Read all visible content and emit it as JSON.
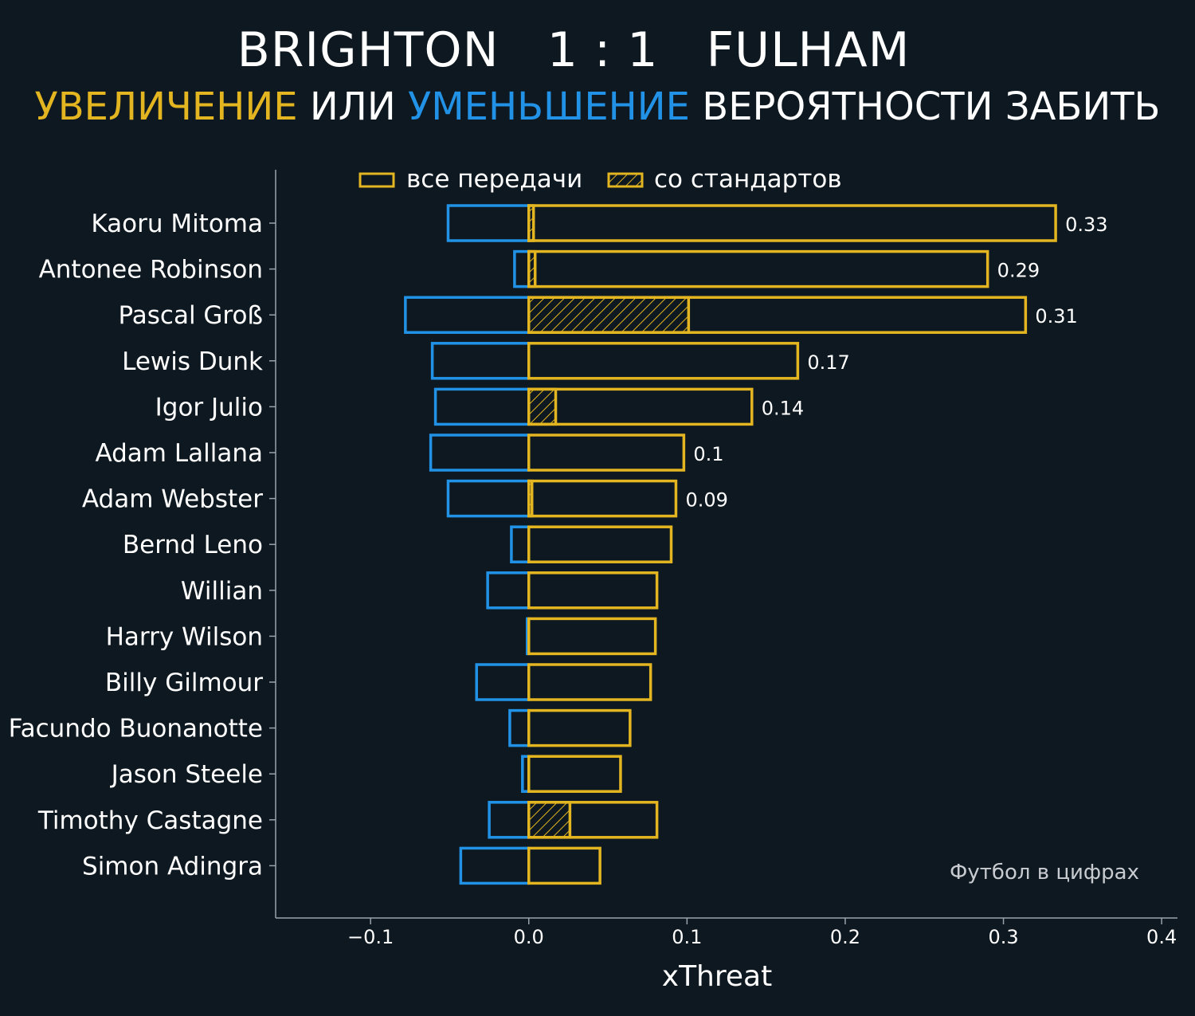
{
  "header": {
    "home_team": "BRIGHTON",
    "score": "1 : 1",
    "away_team": "FULHAM",
    "subtitle_increase": "УВЕЛИЧЕНИЕ",
    "subtitle_or": " ИЛИ ",
    "subtitle_decrease": "УМЕНЬШЕНИЕ",
    "subtitle_rest": " ВЕРОЯТНОСТИ ЗАБИТЬ"
  },
  "credit": "Футбол в цифрах",
  "colors": {
    "background": "#0e1820",
    "increase": "#e3b520",
    "decrease": "#2292e6",
    "axis": "#9aa3aa",
    "text": "#ffffff"
  },
  "chart_data": {
    "type": "bar",
    "orientation": "horizontal",
    "xlabel": "xThreat",
    "ylabel": "",
    "xlim": [
      -0.16,
      0.41
    ],
    "xticks": [
      -0.1,
      0.0,
      0.1,
      0.2,
      0.3,
      0.4
    ],
    "xtick_labels": [
      "−0.1",
      "0.0",
      "0.1",
      "0.2",
      "0.3",
      "0.4"
    ],
    "legend": {
      "placement": "top",
      "entries": [
        "все передачи",
        "со стандартов"
      ]
    },
    "categories": [
      "Kaoru Mitoma",
      "Antonee Robinson",
      "Pascal Groß",
      "Lewis Dunk",
      "Igor Julio",
      "Adam Lallana",
      "Adam Webster",
      "Bernd Leno",
      "Willian",
      "Harry Wilson",
      "Billy Gilmour",
      "Facundo Buonanotte",
      "Jason Steele",
      "Timothy Castagne",
      "Simon Adingra"
    ],
    "series": [
      {
        "name": "все передачи",
        "role": "positive",
        "values": [
          0.333,
          0.29,
          0.314,
          0.17,
          0.141,
          0.098,
          0.093,
          0.09,
          0.081,
          0.08,
          0.077,
          0.064,
          0.058,
          0.081,
          0.045
        ]
      },
      {
        "name": "все передачи",
        "role": "negative",
        "values": [
          -0.051,
          -0.009,
          -0.078,
          -0.061,
          -0.059,
          -0.062,
          -0.051,
          -0.011,
          -0.026,
          -0.001,
          -0.033,
          -0.012,
          -0.004,
          -0.025,
          -0.043
        ]
      },
      {
        "name": "со стандартов",
        "role": "set_pieces",
        "values": [
          0.003,
          0.004,
          0.101,
          0.0,
          0.017,
          0.0,
          0.002,
          0.0,
          0.0,
          0.0,
          0.0,
          0.0,
          0.0,
          0.026,
          0.0
        ]
      }
    ],
    "data_labels": [
      "0.33",
      "0.29",
      "0.31",
      "0.17",
      "0.14",
      "0.1",
      "0.09",
      "",
      "",
      "",
      "",
      "",
      "",
      "",
      ""
    ]
  }
}
